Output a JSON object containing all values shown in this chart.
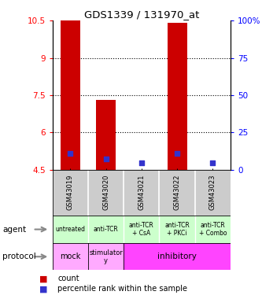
{
  "title": "GDS1339 / 131970_at",
  "samples": [
    "GSM43019",
    "GSM43020",
    "GSM43021",
    "GSM43022",
    "GSM43023"
  ],
  "bar_heights": [
    10.5,
    7.3,
    4.5,
    10.4,
    4.5
  ],
  "bar_base": 4.5,
  "blue_y": [
    5.15,
    4.93,
    4.78,
    5.15,
    4.78
  ],
  "ylim": [
    4.5,
    10.5
  ],
  "yticks_left": [
    4.5,
    6.0,
    7.5,
    9.0,
    10.5
  ],
  "yticks_right_labels": [
    "0",
    "25",
    "50",
    "75",
    "100%"
  ],
  "yticks_right_vals": [
    0,
    25,
    50,
    75,
    100
  ],
  "bar_color": "#cc0000",
  "blue_color": "#3333cc",
  "agent_labels": [
    "untreated",
    "anti-TCR",
    "anti-TCR\n+ CsA",
    "anti-TCR\n+ PKCi",
    "anti-TCR\n+ Combo"
  ],
  "agent_bg": "#ccffcc",
  "sample_bg": "#cccccc",
  "proto_mock_bg": "#ffaaff",
  "proto_stim_bg": "#ffaaff",
  "proto_inhib_bg": "#ff44ff",
  "legend_count_color": "#cc0000",
  "legend_pct_color": "#3333cc"
}
